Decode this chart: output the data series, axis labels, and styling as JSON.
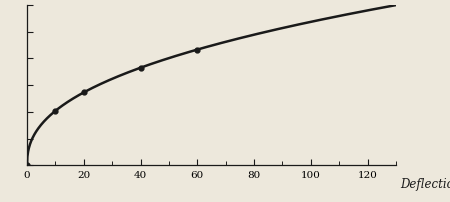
{
  "xlabel": "Deflection",
  "xticks": [
    0,
    20,
    40,
    60,
    80,
    100,
    120
  ],
  "xlim": [
    0,
    130
  ],
  "ylim": [
    0,
    1.0
  ],
  "yticks": [
    0.0,
    0.167,
    0.333,
    0.5,
    0.667,
    0.833,
    1.0
  ],
  "bg_color": "#ede8dc",
  "curve_color": "#1a1a1a",
  "marker_color": "#1a1a1a",
  "marker_points_x": [
    0,
    10,
    20,
    40,
    60
  ],
  "curve_power": 0.42,
  "linewidth": 1.8,
  "tick_fontsize": 7.5
}
